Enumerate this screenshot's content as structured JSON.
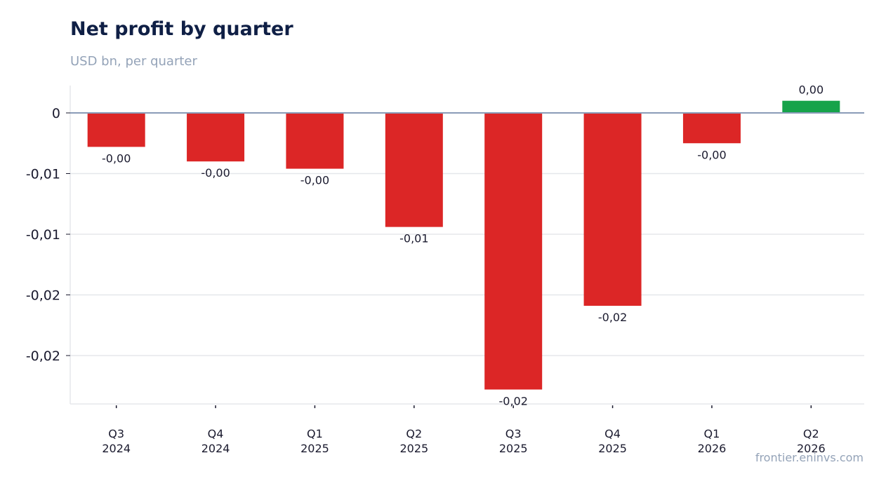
{
  "chart_data": {
    "type": "bar",
    "title": "Net profit by quarter",
    "subtitle": "USD bn, per quarter",
    "xlabel": "",
    "ylabel": "",
    "categories": [
      [
        "Q3",
        "2024"
      ],
      [
        "Q4",
        "2024"
      ],
      [
        "Q1",
        "2025"
      ],
      [
        "Q2",
        "2025"
      ],
      [
        "Q3",
        "2025"
      ],
      [
        "Q4",
        "2025"
      ],
      [
        "Q1",
        "2026"
      ],
      [
        "Q2",
        "2026"
      ]
    ],
    "values": [
      -0.0028,
      -0.004,
      -0.0046,
      -0.0094,
      -0.0228,
      -0.0159,
      -0.0025,
      0.001
    ],
    "data_labels": [
      "-0,00",
      "-0,00",
      "-0,00",
      "-0,01",
      "-0,02",
      "-0,02",
      "-0,00",
      "0,00"
    ],
    "yticks": [
      {
        "value": 0,
        "label": "0"
      },
      {
        "value": -0.005,
        "label": "-0,01"
      },
      {
        "value": -0.01,
        "label": "-0,01"
      },
      {
        "value": -0.015,
        "label": "-0,02"
      },
      {
        "value": -0.02,
        "label": "-0,02"
      }
    ],
    "ylim": [
      -0.024,
      0.0022
    ],
    "grid": true,
    "colors": {
      "negative": "#dc2626",
      "positive": "#16a34a",
      "zero_line": "#8a9bb8",
      "grid": "#e5e7eb"
    }
  },
  "source": "frontier.eninvs.com"
}
